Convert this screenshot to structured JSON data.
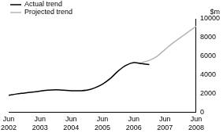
{
  "chart_data": {
    "type": "line",
    "ylabel": "$m",
    "categories": [
      "Jun 2002",
      null,
      null,
      null,
      "Jun 2003",
      null,
      null,
      null,
      "Jun 2004",
      null,
      null,
      null,
      "Jun 2005",
      null,
      null,
      null,
      "Jun 2006",
      null,
      null,
      null,
      "Jun 2007",
      null,
      null,
      null,
      "Jun 2008"
    ],
    "series": [
      {
        "name": "Actual trend",
        "color": "#000000",
        "values": [
          1800,
          1950,
          2050,
          2150,
          2250,
          2350,
          2400,
          2350,
          2300,
          2300,
          2350,
          2600,
          3000,
          3600,
          4400,
          5000,
          5300,
          5200,
          5100,
          null,
          null,
          null,
          null,
          null,
          null
        ]
      },
      {
        "name": "Projected trend",
        "color": "#b4b4b4",
        "values": [
          null,
          null,
          null,
          null,
          null,
          null,
          null,
          null,
          null,
          null,
          null,
          null,
          null,
          null,
          null,
          null,
          null,
          5300,
          5550,
          6000,
          6700,
          7400,
          8000,
          8600,
          9200
        ]
      }
    ],
    "ylim": [
      0,
      10000
    ],
    "yticks": [
      0,
      2000,
      4000,
      6000,
      8000,
      10000
    ],
    "grid": false,
    "legend": "upper left"
  }
}
